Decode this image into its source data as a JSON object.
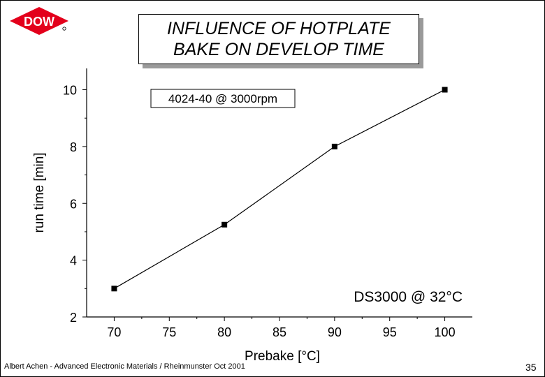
{
  "slide": {
    "title_line1": "INFLUENCE OF HOTPLATE",
    "title_line2": "BAKE ON DEVELOP TIME",
    "logo_text": "DOW",
    "footer": "Albert Achen - Advanced Electronic Materials / Rheinmunster Oct 2001",
    "page_number": "35",
    "brand_color": "#e3001b"
  },
  "chart_data": {
    "type": "line",
    "title": "",
    "xlabel": "Prebake [°C]",
    "ylabel": "run time [min]",
    "xlim": [
      67.5,
      102.5
    ],
    "ylim": [
      2,
      10.75
    ],
    "xticks": [
      70,
      75,
      80,
      85,
      90,
      95,
      100
    ],
    "yticks": [
      2,
      4,
      6,
      8,
      10
    ],
    "grid": false,
    "series": [
      {
        "x": [
          70,
          80,
          90,
          100
        ],
        "y": [
          3.0,
          5.25,
          8.0,
          10.0
        ],
        "marker": "square",
        "color": "#000000"
      }
    ],
    "annotations": {
      "box_label": "4024-40 @ 3000rpm",
      "corner_label": "DS3000 @ 32°C"
    }
  }
}
